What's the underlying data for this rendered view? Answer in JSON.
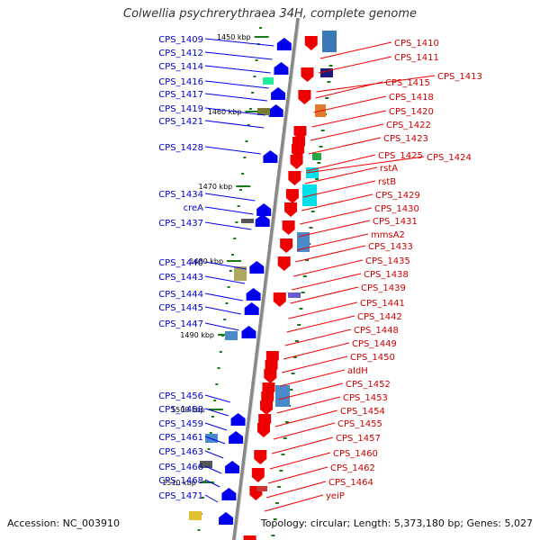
{
  "title": "Colwellia psychrerythraea 34H, complete genome",
  "footer": {
    "accession": "Accession: NC_003910",
    "summary": "Topology: circular; Length: 5,373,180 bp; Genes: 5,027"
  },
  "colors": {
    "forward": "#0000ee",
    "reverse": "#ee0000",
    "backbone": "#888888",
    "tick": "#1a7a1a"
  },
  "scale_ticks": [
    "1450 kbp",
    "1460 kbp",
    "1470 kbp",
    "1480 kbp",
    "1490 kbp",
    "1500 kbp",
    "1510 kbp"
  ],
  "left_labels": [
    "CPS_1409",
    "CPS_1412",
    "CPS_1414",
    "CPS_1416",
    "CPS_1417",
    "CPS_1419",
    "CPS_1421",
    "CPS_1428",
    "CPS_1434",
    "creA",
    "CPS_1437",
    "CPS_1440",
    "CPS_1443",
    "CPS_1444",
    "CPS_1445",
    "CPS_1447",
    "CPS_1456",
    "CPS_1458",
    "CPS_1459",
    "CPS_1461",
    "CPS_1463",
    "CPS_1466",
    "CPS_1468",
    "CPS_1471"
  ],
  "right_labels": [
    "CPS_1410",
    "CPS_1411",
    "CPS_1413",
    "CPS_1415",
    "CPS_1418",
    "CPS_1420",
    "CPS_1422",
    "CPS_1423",
    "CPS_1425",
    "CPS_1424",
    "rstA",
    "rstB",
    "CPS_1429",
    "CPS_1430",
    "CPS_1431",
    "mmsA2",
    "CPS_1433",
    "CPS_1435",
    "CPS_1438",
    "CPS_1439",
    "CPS_1441",
    "CPS_1442",
    "CPS_1448",
    "CPS_1449",
    "CPS_1450",
    "aldH",
    "CPS_1452",
    "CPS_1453",
    "CPS_1454",
    "CPS_1455",
    "CPS_1457",
    "CPS_1460",
    "CPS_1462",
    "CPS_1464",
    "yeiP"
  ]
}
